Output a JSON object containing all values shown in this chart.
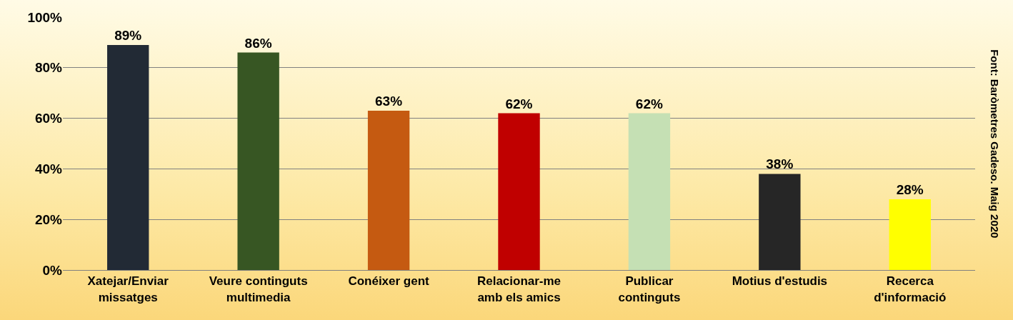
{
  "chart_data": {
    "type": "bar",
    "categories": [
      "Xatejar/Enviar\nmissatges",
      "Veure continguts\nmultimedia",
      "Conéixer gent",
      "Relacionar-me\namb els amics",
      "Publicar\ncontinguts",
      "Motius d'estudis",
      "Recerca\nd'informació"
    ],
    "values": [
      89,
      86,
      63,
      62,
      62,
      38,
      28
    ],
    "colors": [
      "#222a35",
      "#375623",
      "#c55a11",
      "#c00000",
      "#c5e0b4",
      "#262626",
      "#ffff00"
    ],
    "data_labels": true,
    "value_labels": [
      "89%",
      "86%",
      "63%",
      "62%",
      "62%",
      "38%",
      "28%"
    ],
    "ylim": [
      0,
      100
    ],
    "yticks": [
      {
        "value": 0,
        "label": "0%"
      },
      {
        "value": 20,
        "label": "20%"
      },
      {
        "value": 40,
        "label": "40%"
      },
      {
        "value": 60,
        "label": "60%"
      },
      {
        "value": 80,
        "label": "80%"
      },
      {
        "value": 100,
        "label": "100%"
      }
    ],
    "grid": "y",
    "annotations": [
      "Font: Baròmetres Gadeso. Maig 2020"
    ]
  }
}
